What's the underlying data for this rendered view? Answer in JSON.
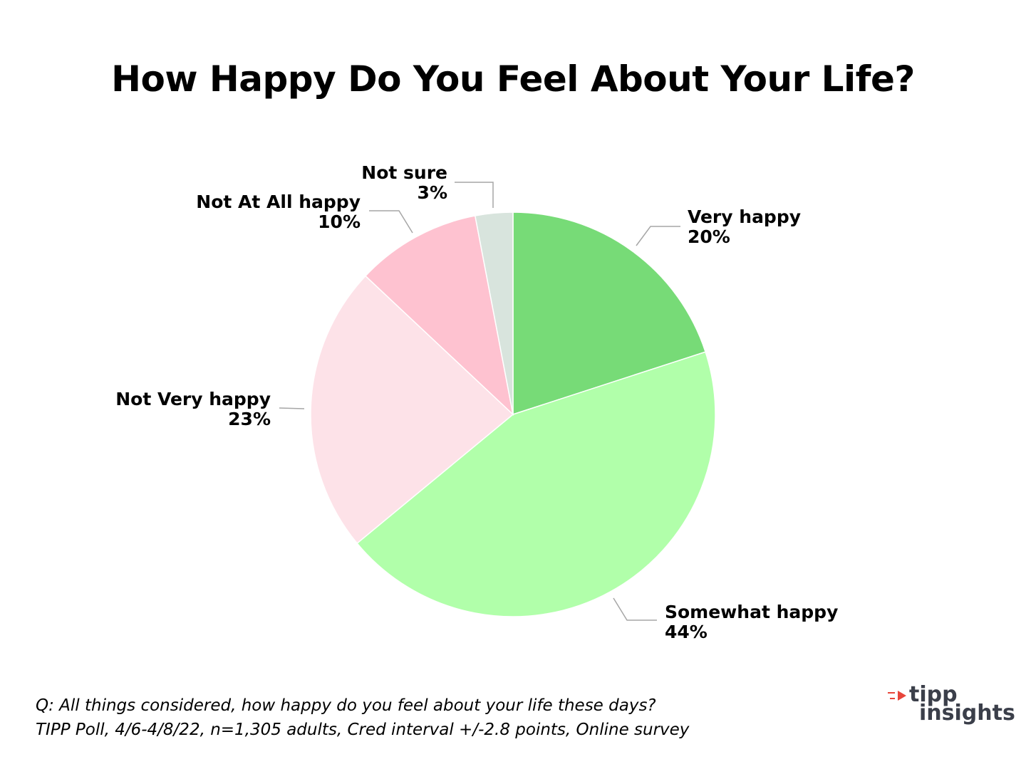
{
  "chart_data": {
    "type": "pie",
    "title": "How Happy Do You Feel About Your Life?",
    "slices": [
      {
        "label": "Very happy",
        "value": 20,
        "value_label": "20%",
        "color": "#77db77"
      },
      {
        "label": "Somewhat happy",
        "value": 44,
        "value_label": "44%",
        "color": "#b1ffaa"
      },
      {
        "label": "Not Very happy",
        "value": 23,
        "value_label": "23%",
        "color": "#fde2e8"
      },
      {
        "label": "Not At All happy",
        "value": 10,
        "value_label": "10%",
        "color": "#fec2d0"
      },
      {
        "label": "Not sure",
        "value": 3,
        "value_label": "3%",
        "color": "#d8e4dd"
      }
    ]
  },
  "footer": {
    "question": "Q:  All things considered, how happy do you feel about your life these days?",
    "source": "TIPP Poll, 4/6-4/8/22, n=1,305 adults, Cred interval +/-2.8 points, Online survey"
  },
  "logo": {
    "line1": "tipp",
    "line2": "insights",
    "accent_color": "#e8463b"
  }
}
